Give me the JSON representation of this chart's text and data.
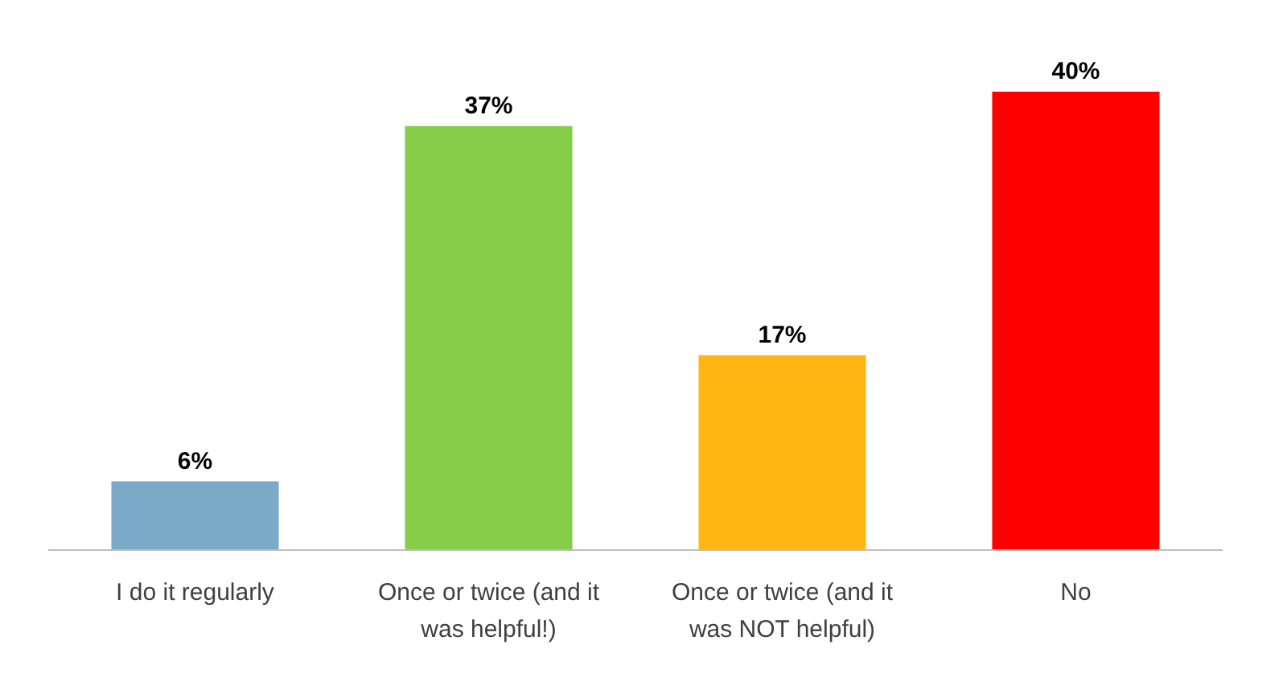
{
  "chart_data": {
    "type": "bar",
    "categories": [
      "I do it regularly",
      "Once or twice (and it was helpful!)",
      "Once or twice (and it was NOT helpful)",
      "No"
    ],
    "values": [
      6,
      37,
      17,
      40
    ],
    "colors": [
      "#7aaac8",
      "#86ce4a",
      "#ffb612",
      "#ff0000"
    ],
    "value_labels": [
      "6%",
      "37%",
      "17%",
      "40%"
    ]
  }
}
